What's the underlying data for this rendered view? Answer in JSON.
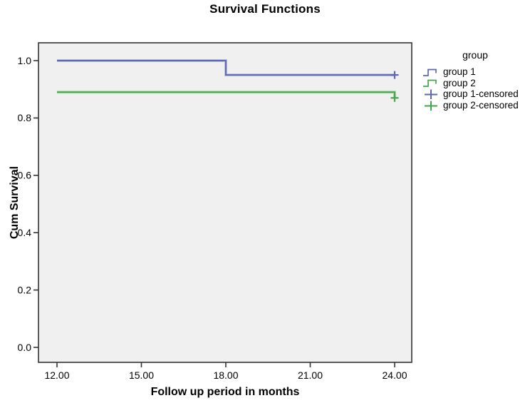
{
  "chart_data": {
    "type": "line",
    "subtype": "kaplan-meier-step-survival",
    "title": "Survival Functions",
    "xlabel": "Follow up period in months",
    "ylabel": "Cum Survival",
    "xlim": [
      12,
      24
    ],
    "ylim": [
      0.0,
      1.0
    ],
    "grid": false,
    "legend_position": "right",
    "x_ticks": [
      {
        "v": 12,
        "label": "12.00"
      },
      {
        "v": 15,
        "label": "15.00"
      },
      {
        "v": 18,
        "label": "18.00"
      },
      {
        "v": 21,
        "label": "21.00"
      },
      {
        "v": 24,
        "label": "24.00"
      }
    ],
    "y_ticks": [
      {
        "v": 0.0,
        "label": "0.0"
      },
      {
        "v": 0.2,
        "label": "0.2"
      },
      {
        "v": 0.4,
        "label": "0.4"
      },
      {
        "v": 0.6,
        "label": "0.6"
      },
      {
        "v": 0.8,
        "label": "0.8"
      },
      {
        "v": 1.0,
        "label": "1.0"
      }
    ],
    "legend": {
      "title": "group",
      "entries": [
        {
          "label": "group 1",
          "glyph": "step",
          "color": "#5b68b0"
        },
        {
          "label": "group 2",
          "glyph": "step",
          "color": "#43a64b"
        },
        {
          "label": "group 1-censored",
          "glyph": "plus",
          "color": "#5b68b0"
        },
        {
          "label": "group 2-censored",
          "glyph": "plus",
          "color": "#43a64b"
        }
      ]
    },
    "series": [
      {
        "name": "group 1",
        "color": "#5b68b0",
        "points": [
          [
            12,
            1.0
          ],
          [
            18,
            1.0
          ],
          [
            18,
            0.95
          ],
          [
            24,
            0.95
          ]
        ],
        "censored": [
          [
            24,
            0.95
          ]
        ]
      },
      {
        "name": "group 2",
        "color": "#43a64b",
        "points": [
          [
            12,
            0.89
          ],
          [
            24,
            0.89
          ],
          [
            24,
            0.87
          ]
        ],
        "censored": [
          [
            24,
            0.87
          ]
        ]
      }
    ],
    "colors": {
      "plot_bg": "#f0f0f0",
      "frame": "#333333",
      "text": "#000000"
    }
  }
}
